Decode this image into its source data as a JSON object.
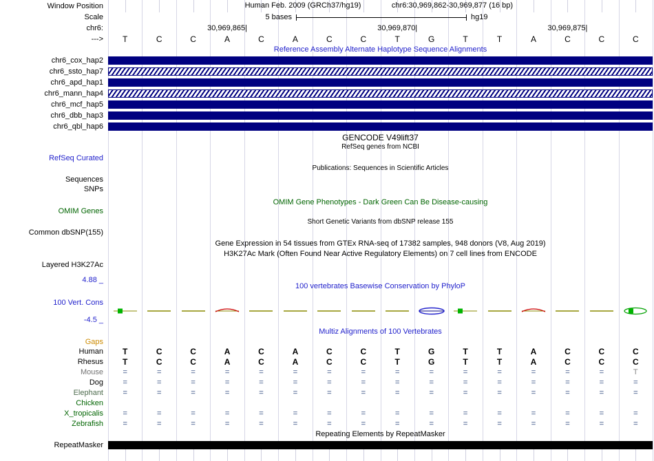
{
  "header": {
    "assembly": "Human Feb. 2009 (GRCh37/hg19)",
    "range": "chr6:30,969,862-30,969,877 (16 bp)"
  },
  "ruler": {
    "scale_label": "5 bases",
    "genome": "hg19",
    "marks": [
      {
        "text": "30,969,865",
        "base": 3
      },
      {
        "text": "30,969,870",
        "base": 8
      },
      {
        "text": "30,969,875",
        "base": 13
      }
    ]
  },
  "bases": [
    "T",
    "C",
    "C",
    "A",
    "C",
    "A",
    "C",
    "C",
    "T",
    "G",
    "T",
    "T",
    "A",
    "C",
    "C",
    "C"
  ],
  "left_labels": [
    {
      "id": "window_position",
      "text": "Window Position",
      "color": "#000000"
    },
    {
      "id": "scale",
      "text": "Scale",
      "color": "#000000"
    },
    {
      "id": "chr6",
      "text": "chr6:",
      "color": "#000000"
    },
    {
      "id": "arrow",
      "text": "--->",
      "color": "#000000"
    },
    {
      "id": "cox",
      "text": "chr6_cox_hap2",
      "color": "#000000"
    },
    {
      "id": "ssto",
      "text": "chr6_ssto_hap7",
      "color": "#000000"
    },
    {
      "id": "apd",
      "text": "chr6_apd_hap1",
      "color": "#000000"
    },
    {
      "id": "mann",
      "text": "chr6_mann_hap4",
      "color": "#000000"
    },
    {
      "id": "mcf",
      "text": "chr6_mcf_hap5",
      "color": "#000000"
    },
    {
      "id": "dbb",
      "text": "chr6_dbb_hap3",
      "color": "#000000"
    },
    {
      "id": "qbl",
      "text": "chr6_qbl_hap6",
      "color": "#000000"
    },
    {
      "id": "refseq_curated",
      "text": "RefSeq Curated",
      "color": "#2222cc"
    },
    {
      "id": "sequences",
      "text": "Sequences",
      "color": "#000000"
    },
    {
      "id": "snps",
      "text": "SNPs",
      "color": "#000000"
    },
    {
      "id": "omim_genes",
      "text": "OMIM Genes",
      "color": "#006400"
    },
    {
      "id": "common_dbsnp",
      "text": "Common dbSNP(155)",
      "color": "#000000"
    },
    {
      "id": "layered_h3k27ac",
      "text": "Layered H3K27Ac",
      "color": "#000000"
    },
    {
      "id": "cons_top",
      "text": "4.88 _",
      "color": "#2222cc"
    },
    {
      "id": "vert_cons",
      "text": "100 Vert. Cons",
      "color": "#2222cc"
    },
    {
      "id": "cons_bottom",
      "text": "-4.5 _",
      "color": "#2222cc"
    },
    {
      "id": "gaps",
      "text": "Gaps",
      "color": "#cc8a00"
    },
    {
      "id": "human",
      "text": "Human",
      "color": "#000000"
    },
    {
      "id": "rhesus",
      "text": "Rhesus",
      "color": "#000000"
    },
    {
      "id": "mouse",
      "text": "Mouse",
      "color": "#737373"
    },
    {
      "id": "dog",
      "text": "Dog",
      "color": "#000000"
    },
    {
      "id": "elephant",
      "text": "Elephant",
      "color": "#4d6b4d"
    },
    {
      "id": "chicken",
      "text": "Chicken",
      "color": "#006400"
    },
    {
      "id": "x_tropicalis",
      "text": "X_tropicalis",
      "color": "#006400"
    },
    {
      "id": "zebrafish",
      "text": "Zebrafish",
      "color": "#006400"
    },
    {
      "id": "repeatmasker",
      "text": "RepeatMasker",
      "color": "#000000"
    }
  ],
  "titles": [
    {
      "id": "ref_assembly",
      "text": "Reference Assembly Alternate Haplotype Sequence Alignments",
      "color": "#2222cc",
      "size": 11
    },
    {
      "id": "gencode",
      "text": "GENCODE V49lift37",
      "color": "#000000",
      "size": 12
    },
    {
      "id": "refseq_ncbi",
      "text": "RefSeq genes from NCBI",
      "color": "#000000",
      "size": 10
    },
    {
      "id": "publications",
      "text": "Publications: Sequences in Scientific Articles",
      "color": "#000000",
      "size": 10
    },
    {
      "id": "omim_title",
      "text": "OMIM Gene Phenotypes - Dark Green Can Be Disease-causing",
      "color": "#006400",
      "size": 11
    },
    {
      "id": "dbsnp_title",
      "text": "Short Genetic Variants from dbSNP release 155",
      "color": "#000000",
      "size": 10
    },
    {
      "id": "gtex",
      "text": "Gene Expression in 54 tissues from GTEx RNA-seq of 17382 samples, 948 donors (V8, Aug 2019)",
      "color": "#000000",
      "size": 11
    },
    {
      "id": "h3k27ac_title",
      "text": "H3K27Ac Mark (Often Found Near Active Regulatory Elements) on 7 cell lines from ENCODE",
      "color": "#000000",
      "size": 11
    },
    {
      "id": "phylop",
      "text": "100 vertebrates Basewise Conservation by PhyloP",
      "color": "#2222cc",
      "size": 11
    },
    {
      "id": "multiz",
      "text": "Multiz Alignments of 100 Vertebrates",
      "color": "#2222cc",
      "size": 11
    },
    {
      "id": "repeats",
      "text": "Repeating Elements by RepeatMasker",
      "color": "#000000",
      "size": 11
    }
  ],
  "haplotypes": [
    {
      "name": "chr6_cox_hap2",
      "pattern": "solid"
    },
    {
      "name": "chr6_ssto_hap7",
      "pattern": "hatched"
    },
    {
      "name": "chr6_apd_hap1",
      "pattern": "solid"
    },
    {
      "name": "chr6_mann_hap4",
      "pattern": "hatched"
    },
    {
      "name": "chr6_mcf_hap5",
      "pattern": "solid"
    },
    {
      "name": "chr6_dbb_hap3",
      "pattern": "solid"
    },
    {
      "name": "chr6_qbl_hap6",
      "pattern": "solid"
    }
  ],
  "conservation": {
    "glyphs": [
      "boxline-green",
      "line-olive",
      "line-olive",
      "arc-red",
      "line-olive",
      "line-olive",
      "line-olive",
      "line-olive",
      "line-olive",
      "lens-blue",
      "boxline-green",
      "line-olive",
      "arc-red",
      "line-olive",
      "line-olive",
      "lens-green"
    ]
  },
  "alignment": {
    "rows": [
      {
        "id": "human",
        "style": "base",
        "cells": [
          "T",
          "C",
          "C",
          "A",
          "C",
          "A",
          "C",
          "C",
          "T",
          "G",
          "T",
          "T",
          "A",
          "C",
          "C",
          "C"
        ]
      },
      {
        "id": "rhesus",
        "style": "base",
        "cells": [
          "T",
          "C",
          "C",
          "A",
          "C",
          "A",
          "C",
          "C",
          "T",
          "G",
          "T",
          "T",
          "A",
          "C",
          "C",
          "C"
        ]
      },
      {
        "id": "mouse",
        "style": "gap",
        "cells": [
          "=",
          "=",
          "=",
          "=",
          "=",
          "=",
          "=",
          "=",
          "=",
          "=",
          "=",
          "=",
          "=",
          "=",
          "=",
          "T"
        ]
      },
      {
        "id": "dog",
        "style": "gap",
        "cells": [
          "=",
          "=",
          "=",
          "=",
          "=",
          "=",
          "=",
          "=",
          "=",
          "=",
          "=",
          "=",
          "=",
          "=",
          "=",
          "="
        ]
      },
      {
        "id": "elephant",
        "style": "gap",
        "cells": [
          "=",
          "=",
          "=",
          "=",
          "=",
          "=",
          "=",
          "=",
          "=",
          "=",
          "=",
          "=",
          "=",
          "=",
          "=",
          "="
        ]
      },
      {
        "id": "chicken",
        "style": "gap",
        "cells": [
          "",
          "",
          "",
          "",
          "",
          "",
          "",
          "",
          "",
          "",
          "",
          "",
          "",
          "",
          "",
          ""
        ]
      },
      {
        "id": "x_tropicalis",
        "style": "gap",
        "cells": [
          "=",
          "=",
          "=",
          "=",
          "=",
          "=",
          "=",
          "=",
          "=",
          "=",
          "=",
          "=",
          "=",
          "=",
          "=",
          "="
        ]
      },
      {
        "id": "zebrafish",
        "style": "gap",
        "cells": [
          "=",
          "=",
          "=",
          "=",
          "=",
          "=",
          "=",
          "=",
          "=",
          "=",
          "=",
          "=",
          "=",
          "=",
          "=",
          "="
        ]
      }
    ]
  },
  "colors": {
    "track_bar_navy": "#000080",
    "track_title_blue": "#2222cc",
    "omim_green": "#006400",
    "gap_mark": "#7f8fb0",
    "gridline": "#d6d6e6",
    "repeat_bar": "#000000"
  }
}
